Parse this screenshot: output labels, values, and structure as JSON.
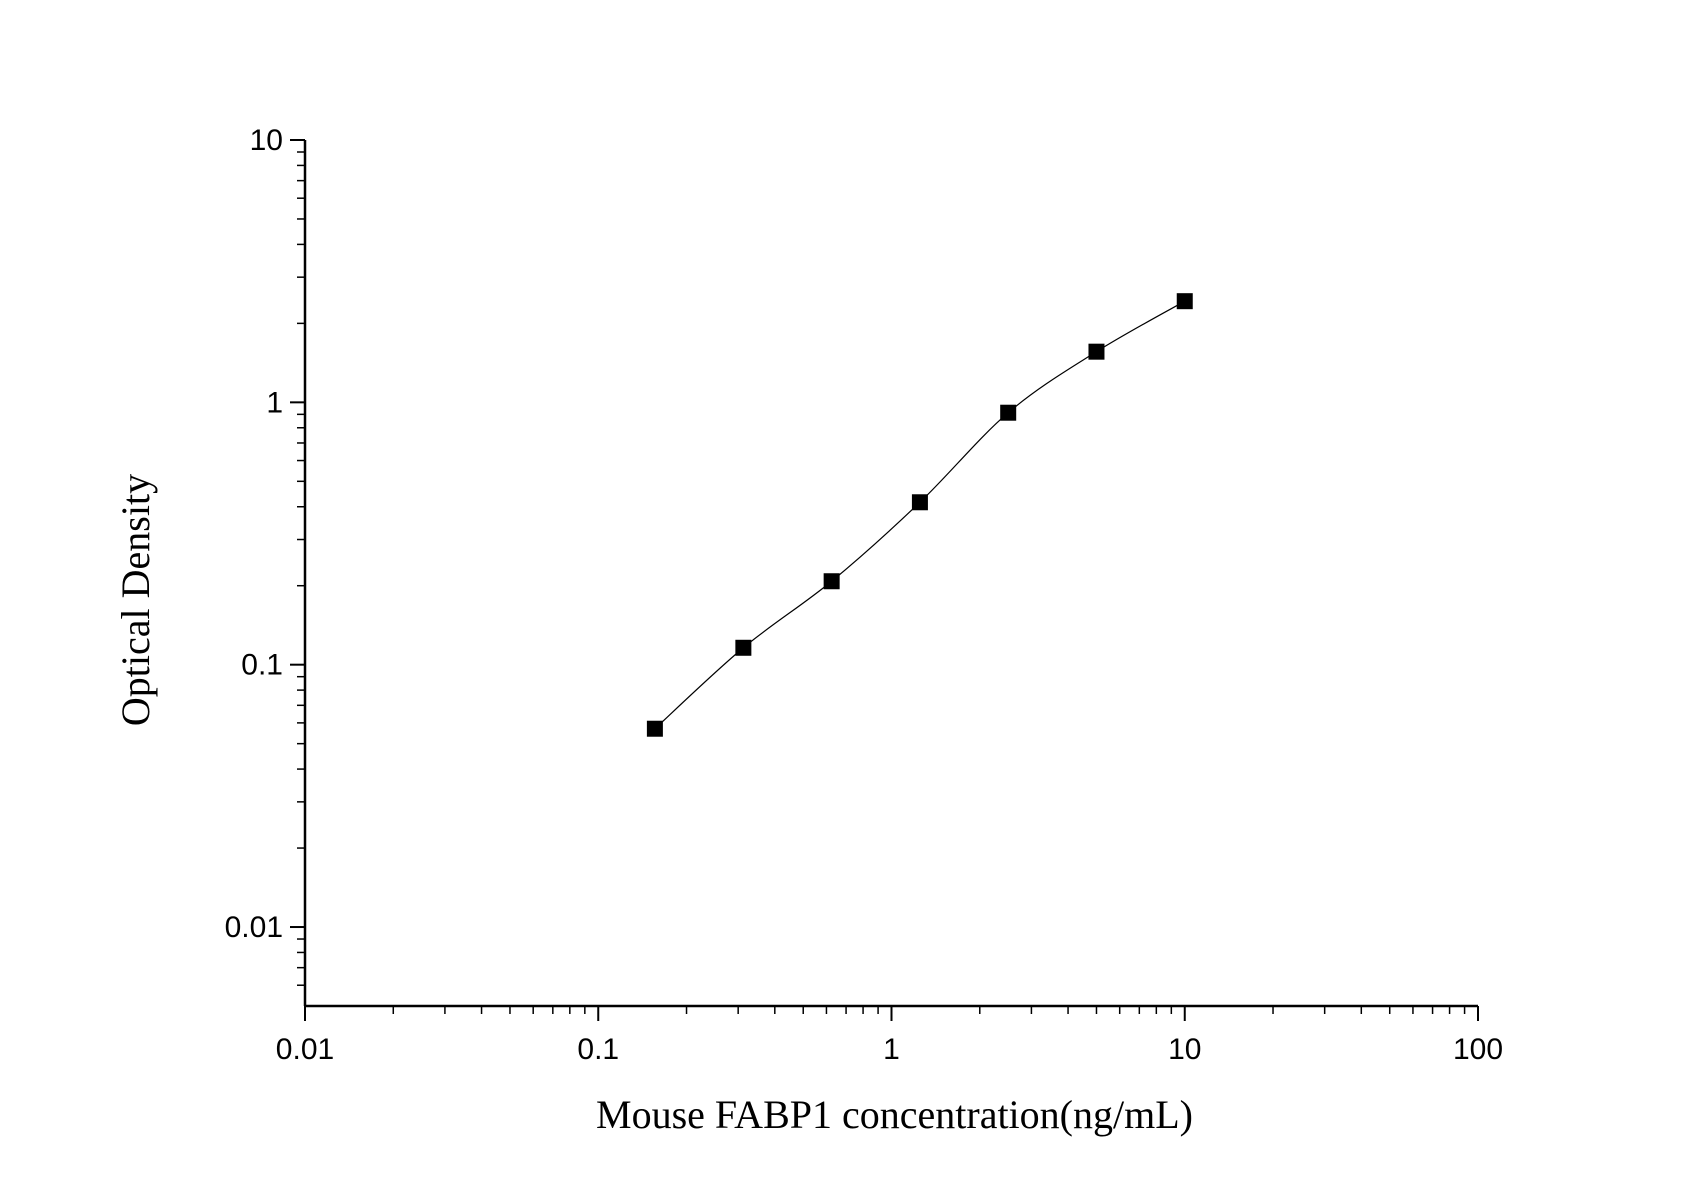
{
  "chart_data": {
    "type": "scatter",
    "title": "",
    "xlabel": "Mouse FABP1 concentration(ng/mL)",
    "ylabel": "Optical Density",
    "xscale": "log",
    "yscale": "log",
    "xlim": [
      0.01,
      100
    ],
    "ylim": [
      0.005,
      10
    ],
    "xticks": [
      0.01,
      0.1,
      1,
      10,
      100
    ],
    "xtick_labels": [
      "0.01",
      "0.1",
      "1",
      "10",
      "100"
    ],
    "yticks": [
      0.01,
      0.1,
      1,
      10
    ],
    "ytick_labels": [
      "0.01",
      "0.1",
      "1",
      "10"
    ],
    "grid": false,
    "legend": "none",
    "series": [
      {
        "marker": "square",
        "color": "#000000",
        "fit_line": true,
        "x": [
          0.156,
          0.3125,
          0.625,
          1.25,
          2.5,
          5,
          10
        ],
        "y": [
          0.057,
          0.116,
          0.208,
          0.416,
          0.913,
          1.56,
          2.43
        ]
      }
    ]
  }
}
